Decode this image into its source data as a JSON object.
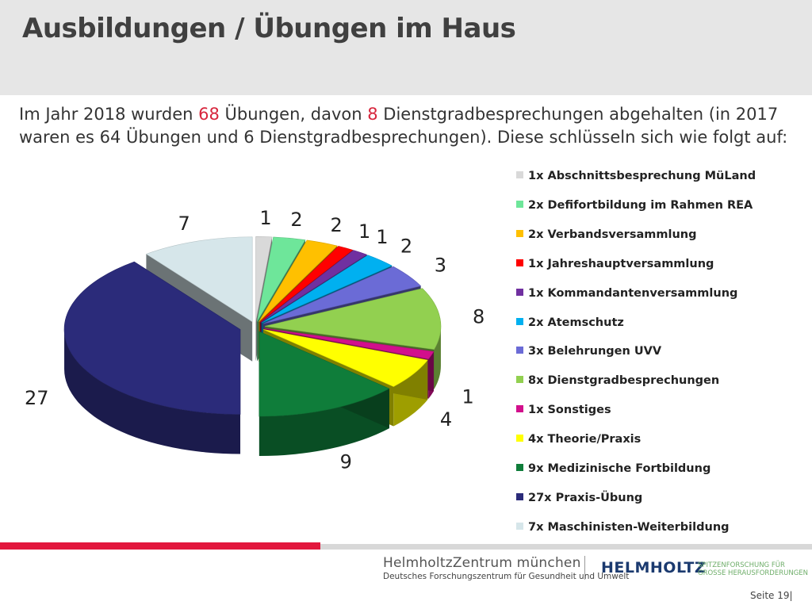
{
  "slide": {
    "title": "Ausbildungen / Übungen im Haus",
    "intro_parts": [
      {
        "text": "Im Jahr 2018 wurden ",
        "highlight": false
      },
      {
        "text": "68",
        "highlight": true
      },
      {
        "text": " Übungen, davon ",
        "highlight": false
      },
      {
        "text": "8",
        "highlight": true
      },
      {
        "text": " Dienstgradbesprechungen abgehalten (in 2017 waren es 64 Übungen und 6 Dienstgradbesprechungen). Diese schlüsseln sich wie folgt auf:",
        "highlight": false
      }
    ],
    "highlight_color": "#d7263d"
  },
  "chart_data": {
    "type": "pie",
    "style": "3d-exploded",
    "legend_position": "right",
    "categories": [
      "1x Abschnittsbesprechung MüLand",
      "2x Defifortbildung im Rahmen REA",
      "2x Verbandsversammlung",
      "1x Jahreshauptversammlung",
      "1x Kommandantenversammlung",
      "2x Atemschutz",
      "3x Belehrungen UVV",
      "8x Dienstgradbesprechungen",
      "1x Sonstiges",
      "4x Theorie/Praxis",
      "9x Medizinische Fortbildung",
      "27x Praxis-Übung",
      "7x Maschinisten-Weiterbildung"
    ],
    "values": [
      1,
      2,
      2,
      1,
      1,
      2,
      3,
      8,
      1,
      4,
      9,
      27,
      7
    ],
    "colors": [
      "#d9d9d9",
      "#6ee69a",
      "#ffc000",
      "#ff0000",
      "#7030a0",
      "#00b0f0",
      "#6b6bd6",
      "#92d050",
      "#d20f8c",
      "#ffff00",
      "#0f7d3a",
      "#2b2b7a",
      "#d6e6ea"
    ]
  },
  "footer": {
    "org_name": "HelmholtzZentrum münchen",
    "org_subtitle": "Deutsches Forschungszentrum für Gesundheit und Umwelt",
    "brand": "HELMHOLTZ",
    "brand_tagline_1": "SPITZENFORSCHUNG FÜR",
    "brand_tagline_2": "GROSSE HERAUSFORDERUNGEN",
    "page_label": "Seite 19|"
  }
}
